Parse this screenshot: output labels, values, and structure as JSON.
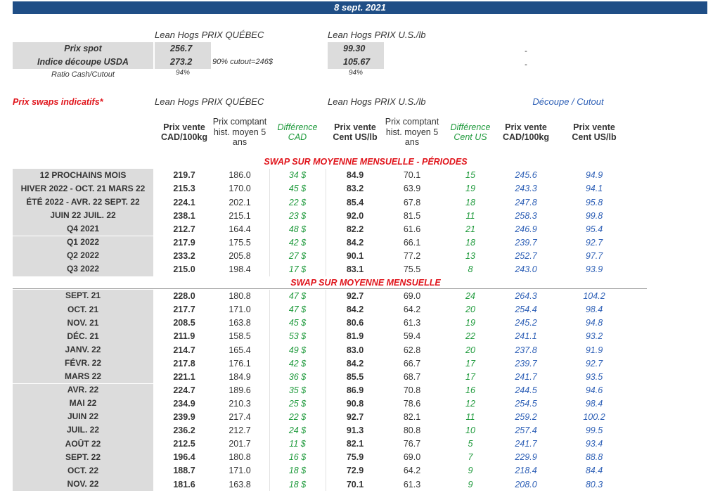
{
  "header": {
    "date": "8 sept. 2021"
  },
  "summary": {
    "quebec_title": "Lean Hogs PRIX QUÉBEC",
    "us_title": "Lean Hogs PRIX U.S./lb",
    "rows": [
      {
        "label": "Prix spot",
        "quebec": "256.7",
        "us": "99.30",
        "cutout": "-"
      },
      {
        "label": "Indice découpe USDA",
        "quebec": "273.2",
        "note": "90% cutout=246$",
        "us": "105.67",
        "cutout": "-"
      }
    ],
    "ratio": {
      "label": "Ratio Cash/Cutout",
      "quebec": "94%",
      "us": "94%"
    }
  },
  "swaps": {
    "title": "Prix swaps indicatifs*",
    "quebec_title": "Lean Hogs PRIX QUÉBEC",
    "us_title": "Lean Hogs PRIX U.S./lb",
    "cutout_title": "Découpe / Cutout",
    "columns": [
      "Prix vente CAD/100kg",
      "Prix comptant hist. moyen 5 ans",
      "Différence CAD",
      "Prix vente Cent US/lb",
      "Prix comptant hist. moyen 5 ans",
      "Différence Cent US",
      "Prix vente CAD/100kg",
      "Prix vente Cent US/lb"
    ],
    "sections": [
      {
        "title": "SWAP SUR MOYENNE MENSUELLE - PÉRIODES",
        "rows": [
          [
            "12 PROCHAINS MOIS",
            "219.7",
            "186.0",
            "34 $",
            "84.9",
            "70.1",
            "15",
            "245.6",
            "94.9"
          ],
          [
            "HIVER 2022 - OCT. 21 MARS 22",
            "215.3",
            "170.0",
            "45 $",
            "83.2",
            "63.9",
            "19",
            "243.3",
            "94.1"
          ],
          [
            "ÉTÉ 2022 - AVR. 22 SEPT. 22",
            "224.1",
            "202.1",
            "22 $",
            "85.4",
            "67.8",
            "18",
            "247.8",
            "95.8"
          ],
          [
            "JUIN 22 JUIL. 22",
            "238.1",
            "215.1",
            "23 $",
            "92.0",
            "81.5",
            "11",
            "258.3",
            "99.8"
          ],
          [
            "Q4 2021",
            "212.7",
            "164.4",
            "48 $",
            "82.2",
            "61.6",
            "21",
            "246.9",
            "95.4"
          ],
          [
            "Q1 2022",
            "217.9",
            "175.5",
            "42 $",
            "84.2",
            "66.1",
            "18",
            "239.7",
            "92.7"
          ],
          [
            "Q2 2022",
            "233.2",
            "205.8",
            "27 $",
            "90.1",
            "77.2",
            "13",
            "252.7",
            "97.7"
          ],
          [
            "Q3 2022",
            "215.0",
            "198.4",
            "17 $",
            "83.1",
            "75.5",
            "8",
            "243.0",
            "93.9"
          ]
        ]
      },
      {
        "title": "SWAP SUR MOYENNE MENSUELLE",
        "rows": [
          [
            "SEPT. 21",
            "228.0",
            "180.8",
            "47 $",
            "92.7",
            "69.0",
            "24",
            "264.3",
            "104.2"
          ],
          [
            "OCT. 21",
            "217.7",
            "171.0",
            "47 $",
            "84.2",
            "64.2",
            "20",
            "254.4",
            "98.4"
          ],
          [
            "NOV. 21",
            "208.5",
            "163.8",
            "45 $",
            "80.6",
            "61.3",
            "19",
            "245.2",
            "94.8"
          ],
          [
            "DÉC. 21",
            "211.9",
            "158.5",
            "53 $",
            "81.9",
            "59.4",
            "22",
            "241.1",
            "93.2"
          ],
          [
            "JANV. 22",
            "214.7",
            "165.4",
            "49 $",
            "83.0",
            "62.8",
            "20",
            "237.8",
            "91.9"
          ],
          [
            "FÉVR. 22",
            "217.8",
            "176.1",
            "42 $",
            "84.2",
            "66.7",
            "17",
            "239.7",
            "92.7"
          ],
          [
            "MARS 22",
            "221.1",
            "184.9",
            "36 $",
            "85.5",
            "68.7",
            "17",
            "241.7",
            "93.5"
          ],
          [
            "AVR. 22",
            "224.7",
            "189.6",
            "35 $",
            "86.9",
            "70.8",
            "16",
            "244.5",
            "94.6"
          ],
          [
            "MAI 22",
            "234.9",
            "210.3",
            "25 $",
            "90.8",
            "78.6",
            "12",
            "254.5",
            "98.4"
          ],
          [
            "JUIN 22",
            "239.9",
            "217.4",
            "22 $",
            "92.7",
            "82.1",
            "11",
            "259.2",
            "100.2"
          ],
          [
            "JUIL. 22",
            "236.2",
            "212.7",
            "24 $",
            "91.3",
            "80.8",
            "10",
            "257.4",
            "99.5"
          ],
          [
            "AOÛT 22",
            "212.5",
            "201.7",
            "11 $",
            "82.1",
            "76.7",
            "5",
            "241.7",
            "93.4"
          ],
          [
            "SEPT. 22",
            "196.4",
            "180.8",
            "16 $",
            "75.9",
            "69.0",
            "7",
            "229.9",
            "88.8"
          ],
          [
            "OCT. 22",
            "188.7",
            "171.0",
            "18 $",
            "72.9",
            "64.2",
            "9",
            "218.4",
            "84.4"
          ],
          [
            "NOV. 22",
            "181.6",
            "163.8",
            "18 $",
            "70.1",
            "61.3",
            "9",
            "208.0",
            "80.3"
          ]
        ]
      }
    ]
  }
}
